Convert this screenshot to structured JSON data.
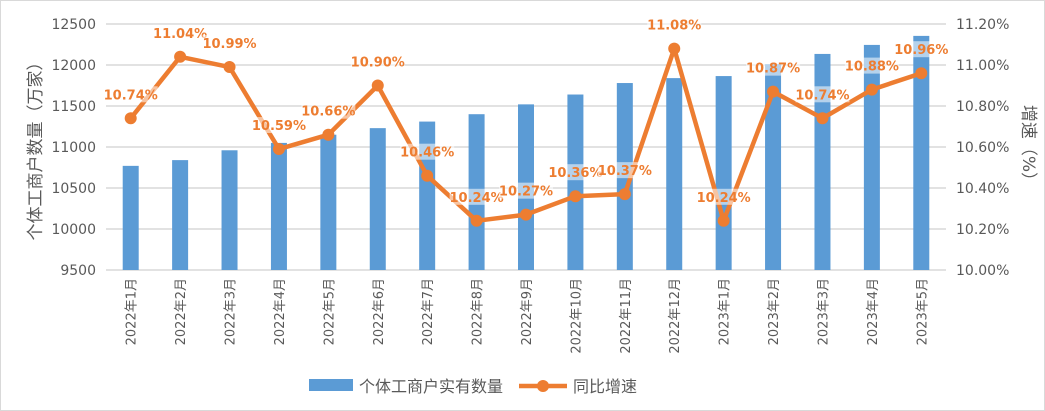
{
  "chart_data": {
    "type": "bar+line",
    "categories": [
      "2022年1月",
      "2022年2月",
      "2022年3月",
      "2022年4月",
      "2022年5月",
      "2022年6月",
      "2022年7月",
      "2022年8月",
      "2022年9月",
      "2022年10月",
      "2022年11月",
      "2022年12月",
      "2023年1月",
      "2023年2月",
      "2023年3月",
      "2023年4月",
      "2023年5月"
    ],
    "series": [
      {
        "name": "个体工商户实有数量",
        "type": "bar",
        "axis": "left",
        "color": "#5B9BD5",
        "values": [
          10770,
          10840,
          10960,
          11050,
          11150,
          11230,
          11310,
          11400,
          11520,
          11640,
          11780,
          11840,
          11865,
          12010,
          12135,
          12245,
          12355
        ]
      },
      {
        "name": "同比增速",
        "type": "line",
        "axis": "right",
        "color": "#ED7D31",
        "values": [
          10.74,
          11.04,
          10.99,
          10.59,
          10.66,
          10.9,
          10.46,
          10.24,
          10.27,
          10.36,
          10.37,
          11.08,
          10.24,
          10.87,
          10.74,
          10.88,
          10.96
        ],
        "labels": [
          "10.74%",
          "11.04%",
          "10.99%",
          "10.59%",
          "10.66%",
          "10.90%",
          "10.46%",
          "10.24%",
          "10.27%",
          "10.36%",
          "10.37%",
          "11.08%",
          "10.24%",
          "10.87%",
          "10.74%",
          "10.88%",
          "10.96%"
        ]
      }
    ],
    "ylabel": "个体工商户数量（万家）",
    "y2label": "增速（%）",
    "ylim": [
      9500,
      12500
    ],
    "yticks": [
      "9500",
      "10000",
      "10500",
      "11000",
      "11500",
      "12000",
      "12500"
    ],
    "y2lim": [
      10.0,
      11.2
    ],
    "y2ticks": [
      "10.00%",
      "10.20%",
      "10.40%",
      "10.60%",
      "10.80%",
      "11.00%",
      "11.20%"
    ],
    "grid": true,
    "legend": "bottom"
  }
}
